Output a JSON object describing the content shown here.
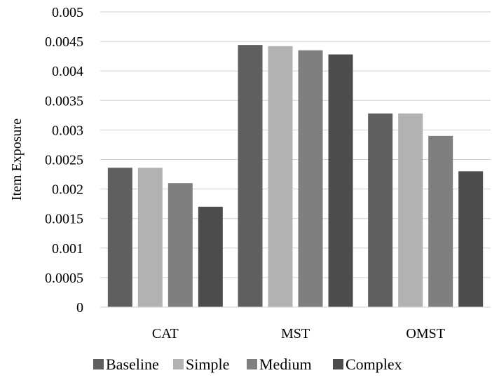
{
  "chart_data": {
    "type": "bar",
    "title": "",
    "xlabel": "",
    "ylabel": "Item Exposure",
    "categories": [
      "CAT",
      "MST",
      "OMST"
    ],
    "series": [
      {
        "name": "Baseline",
        "color": "#5f5f5f",
        "values": [
          0.00236,
          0.00444,
          0.00328
        ]
      },
      {
        "name": "Simple",
        "color": "#b2b2b2",
        "values": [
          0.00236,
          0.00442,
          0.00328
        ]
      },
      {
        "name": "Medium",
        "color": "#7f7f7f",
        "values": [
          0.0021,
          0.00435,
          0.0029
        ]
      },
      {
        "name": "Complex",
        "color": "#4c4c4c",
        "values": [
          0.0017,
          0.00428,
          0.0023
        ]
      }
    ],
    "ylim": [
      0,
      0.005
    ],
    "yticks": [
      "0",
      "0.0005",
      "0.001",
      "0.0015",
      "0.002",
      "0.0025",
      "0.003",
      "0.0035",
      "0.004",
      "0.0045",
      "0.005"
    ],
    "grid": true,
    "legend_position": "bottom"
  }
}
